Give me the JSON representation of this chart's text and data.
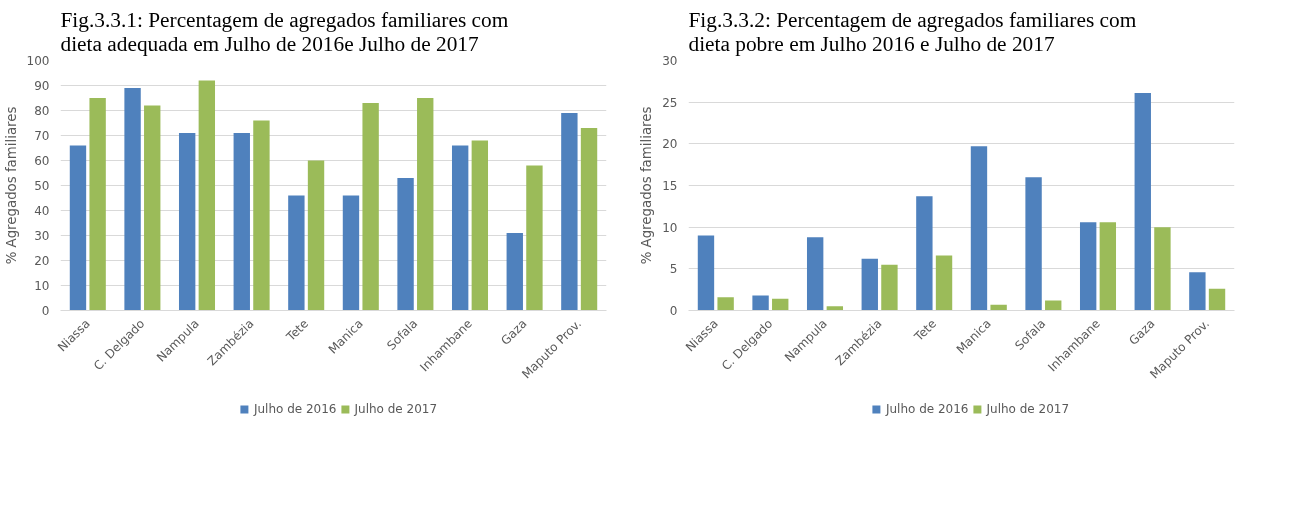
{
  "chart_data": [
    {
      "type": "bar",
      "title": "Fig.3.3.1: Percentagem de agregados familiares com dieta adequada em Julho de 2016e Julho de 2017",
      "ylabel": "% Agregados familiares",
      "categories": [
        "Niassa",
        "C. Delgado",
        "Nampula",
        "Zambézia",
        "Tete",
        "Manica",
        "Sofala",
        "Inhambane",
        "Gaza",
        "Maputo Prov."
      ],
      "series": [
        {
          "name": "Julho de 2016",
          "color": "#4f81bd",
          "values": [
            66,
            89,
            71,
            71,
            46,
            46,
            53,
            66,
            31,
            79
          ]
        },
        {
          "name": "Julho de 2017",
          "color": "#9bbb59",
          "values": [
            85,
            82,
            92,
            76,
            60,
            83,
            85,
            68,
            58,
            73
          ]
        }
      ],
      "ylim": [
        0,
        100
      ],
      "yticks": [
        0,
        10,
        20,
        30,
        40,
        50,
        60,
        70,
        80,
        90,
        100
      ],
      "grid": "y",
      "legend": "bottom"
    },
    {
      "type": "bar",
      "title": "Fig.3.3.2: Percentagem de agregados familiares com dieta pobre em Julho 2016 e Julho de 2017",
      "ylabel": "% Agregados familiares",
      "categories": [
        "Niassa",
        "C. Delgado",
        "Nampula",
        "Zambézia",
        "Tete",
        "Manica",
        "Sofala",
        "Inhambane",
        "Gaza",
        "Maputo Prov."
      ],
      "series": [
        {
          "name": "Julho de 2016",
          "color": "#4f81bd",
          "values": [
            9,
            1.8,
            8.8,
            6.2,
            13.7,
            19.7,
            16,
            10.6,
            26.1,
            4.6
          ]
        },
        {
          "name": "Julho de 2017",
          "color": "#9bbb59",
          "values": [
            1.6,
            1.4,
            0.5,
            5.5,
            6.6,
            0.7,
            1.2,
            10.6,
            10,
            2.6
          ]
        }
      ],
      "ylim": [
        0,
        30
      ],
      "yticks": [
        0,
        5,
        10,
        15,
        20,
        25,
        30
      ],
      "grid": "y",
      "legend": "bottom"
    }
  ]
}
